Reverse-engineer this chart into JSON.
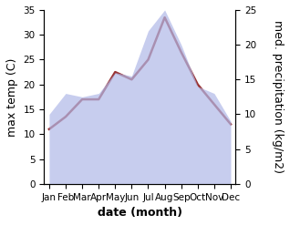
{
  "months": [
    "Jan",
    "Feb",
    "Mar",
    "Apr",
    "May",
    "Jun",
    "Jul",
    "Aug",
    "Sep",
    "Oct",
    "Nov",
    "Dec"
  ],
  "month_indices": [
    0,
    1,
    2,
    3,
    4,
    5,
    6,
    7,
    8,
    9,
    10,
    11
  ],
  "max_temp": [
    11,
    13.5,
    17,
    17,
    22.5,
    21,
    25,
    33.5,
    26.5,
    20,
    16,
    12
  ],
  "precipitation": [
    10,
    13,
    12.5,
    13,
    16,
    15.5,
    22,
    25,
    20,
    14,
    13,
    9
  ],
  "temp_ylim": [
    0,
    35
  ],
  "precip_ylim": [
    0,
    25
  ],
  "temp_yticks": [
    0,
    5,
    10,
    15,
    20,
    25,
    30,
    35
  ],
  "precip_yticks": [
    0,
    5,
    10,
    15,
    20,
    25
  ],
  "fill_color": "#b0b8e8",
  "fill_alpha": 0.7,
  "line_color": "#993333",
  "line_width": 1.8,
  "xlabel": "date (month)",
  "ylabel_left": "max temp (C)",
  "ylabel_right": "med. precipitation (kg/m2)",
  "title": "",
  "bg_color": "#ffffff",
  "xlabel_fontsize": 9,
  "ylabel_fontsize": 9,
  "tick_fontsize": 7.5,
  "xlabel_bold": true,
  "ylabel_bold": false
}
